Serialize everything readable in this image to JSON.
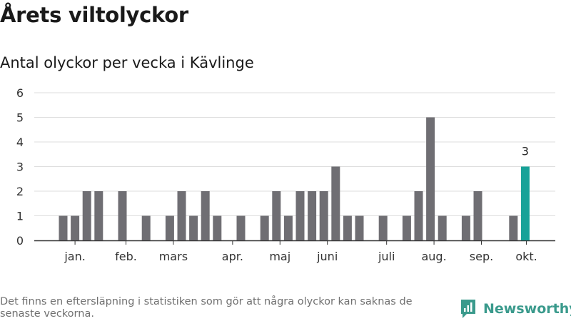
{
  "header": {
    "title": "Årets viltolyckor",
    "subtitle": "Antal olyckor per vecka i Kävlinge"
  },
  "footer": {
    "note": "Det finns en eftersläpning i statistiken som gör att några olyckor kan saknas de senaste veckorna.",
    "brand": "Newsworthy",
    "brand_icon": "newsworthy-logo-icon"
  },
  "colors": {
    "bar": "#6f6e73",
    "highlight": "#17a298",
    "grid": "#dedede",
    "axis": "#333333",
    "brand": "#3a9a8c"
  },
  "chart_data": {
    "type": "bar",
    "title": "Antal olyckor per vecka i Kävlinge",
    "xlabel": "",
    "ylabel": "",
    "ylim": [
      0,
      6
    ],
    "yticks": [
      0,
      1,
      2,
      3,
      4,
      5,
      6
    ],
    "grid": true,
    "weeks": [
      1,
      2,
      3,
      4,
      5,
      6,
      7,
      8,
      9,
      10,
      11,
      12,
      13,
      14,
      15,
      16,
      17,
      18,
      19,
      20,
      21,
      22,
      23,
      24,
      25,
      26,
      27,
      28,
      29,
      30,
      31,
      32,
      33,
      34,
      35,
      36,
      37,
      38,
      39,
      40,
      41
    ],
    "values": [
      0,
      1,
      1,
      2,
      2,
      0,
      2,
      0,
      1,
      0,
      1,
      2,
      1,
      2,
      1,
      0,
      1,
      0,
      1,
      2,
      1,
      2,
      2,
      2,
      3,
      1,
      1,
      0,
      1,
      0,
      1,
      2,
      5,
      1,
      0,
      1,
      2,
      0,
      0,
      1,
      3
    ],
    "highlight_index": 40,
    "highlight_label": "3",
    "month_labels": [
      {
        "label": "jan.",
        "week": 3
      },
      {
        "label": "feb.",
        "week": 7.3
      },
      {
        "label": "mars",
        "week": 11.3
      },
      {
        "label": "apr.",
        "week": 16.3
      },
      {
        "label": "maj",
        "week": 20.3
      },
      {
        "label": "juni",
        "week": 24.3
      },
      {
        "label": "juli",
        "week": 29.3
      },
      {
        "label": "aug.",
        "week": 33.3
      },
      {
        "label": "sep.",
        "week": 37.3
      },
      {
        "label": "okt.",
        "week": 41.1
      }
    ]
  }
}
